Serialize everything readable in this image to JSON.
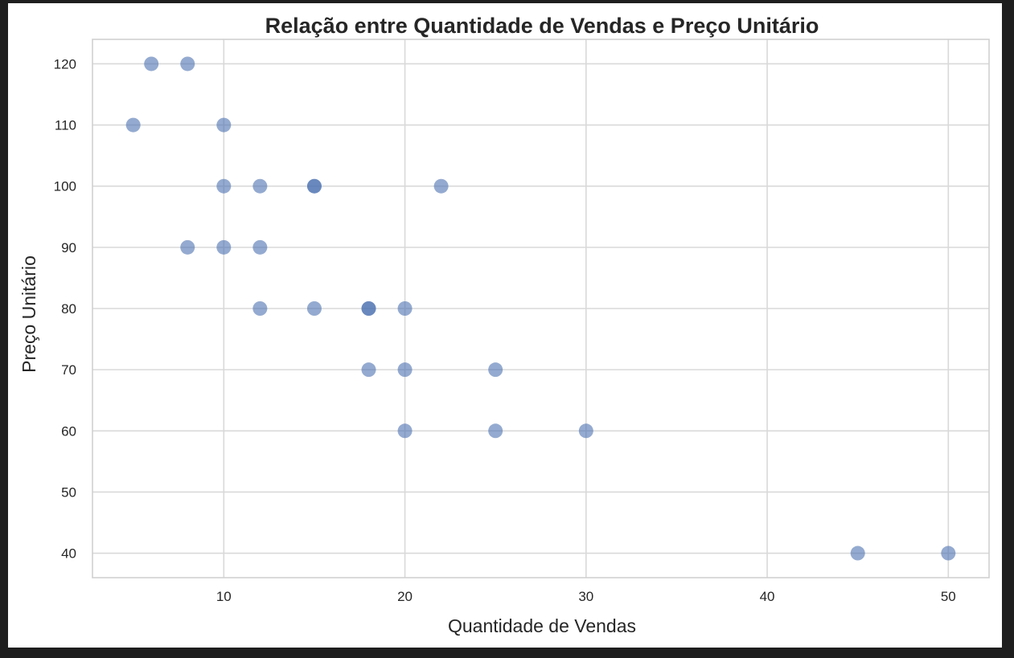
{
  "chart_data": {
    "type": "scatter",
    "title": "Relação entre Quantidade de Vendas e Preço Unitário",
    "xlabel": "Quantidade de Vendas",
    "ylabel": "Preço Unitário",
    "xlim": [
      2.75,
      52.25
    ],
    "ylim": [
      36,
      124
    ],
    "xticks": [
      10,
      20,
      30,
      40,
      50
    ],
    "yticks": [
      40,
      50,
      60,
      70,
      80,
      90,
      100,
      110,
      120
    ],
    "grid": true,
    "marker_color": "#4c72b0",
    "series": [
      {
        "points": [
          {
            "x": 6,
            "y": 120
          },
          {
            "x": 8,
            "y": 120
          },
          {
            "x": 5,
            "y": 110
          },
          {
            "x": 10,
            "y": 110
          },
          {
            "x": 10,
            "y": 100
          },
          {
            "x": 12,
            "y": 100
          },
          {
            "x": 15,
            "y": 100
          },
          {
            "x": 15,
            "y": 100
          },
          {
            "x": 22,
            "y": 100
          },
          {
            "x": 8,
            "y": 90
          },
          {
            "x": 10,
            "y": 90
          },
          {
            "x": 12,
            "y": 90
          },
          {
            "x": 12,
            "y": 80
          },
          {
            "x": 15,
            "y": 80
          },
          {
            "x": 18,
            "y": 80
          },
          {
            "x": 18,
            "y": 80
          },
          {
            "x": 20,
            "y": 80
          },
          {
            "x": 18,
            "y": 70
          },
          {
            "x": 20,
            "y": 70
          },
          {
            "x": 25,
            "y": 70
          },
          {
            "x": 20,
            "y": 60
          },
          {
            "x": 25,
            "y": 60
          },
          {
            "x": 30,
            "y": 60
          },
          {
            "x": 45,
            "y": 40
          },
          {
            "x": 50,
            "y": 40
          }
        ]
      }
    ]
  }
}
